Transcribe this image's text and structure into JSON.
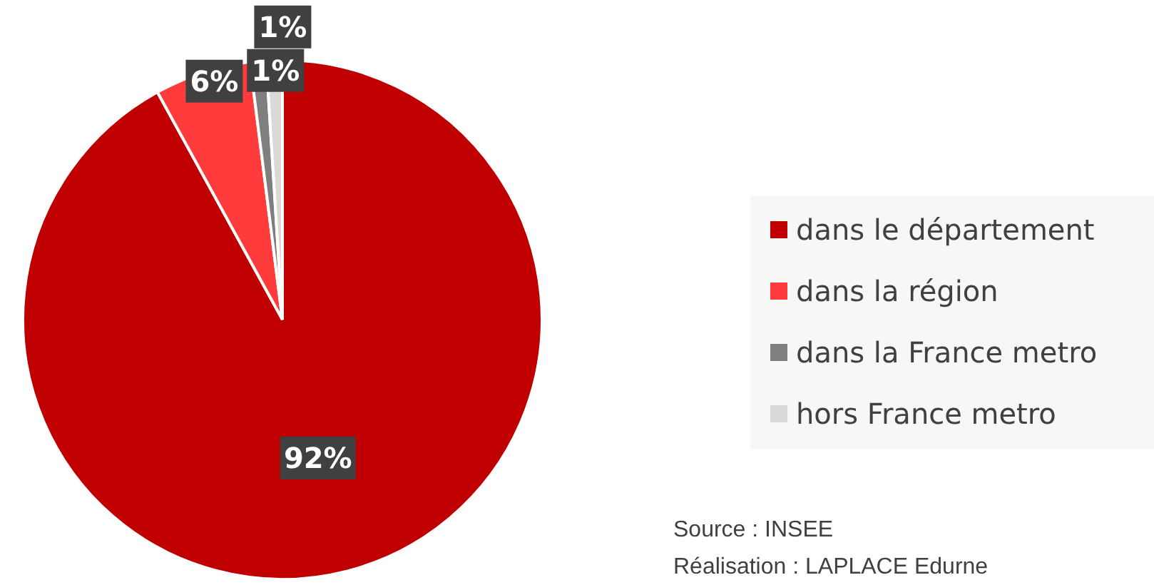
{
  "chart_data": {
    "type": "pie",
    "categories": [
      "dans le département",
      "dans la région",
      "dans la France metro",
      "hors France metro"
    ],
    "values": [
      92,
      6,
      1,
      1
    ],
    "colors": [
      "#c00000",
      "#ff3b3b",
      "#7f7f7f",
      "#d9d9d9"
    ],
    "value_labels": [
      "92%",
      "6%",
      "1%",
      "1%"
    ],
    "legend": "right",
    "annotations": [
      "Source : INSEE",
      "Réalisation : LAPLACE Edurne"
    ]
  }
}
